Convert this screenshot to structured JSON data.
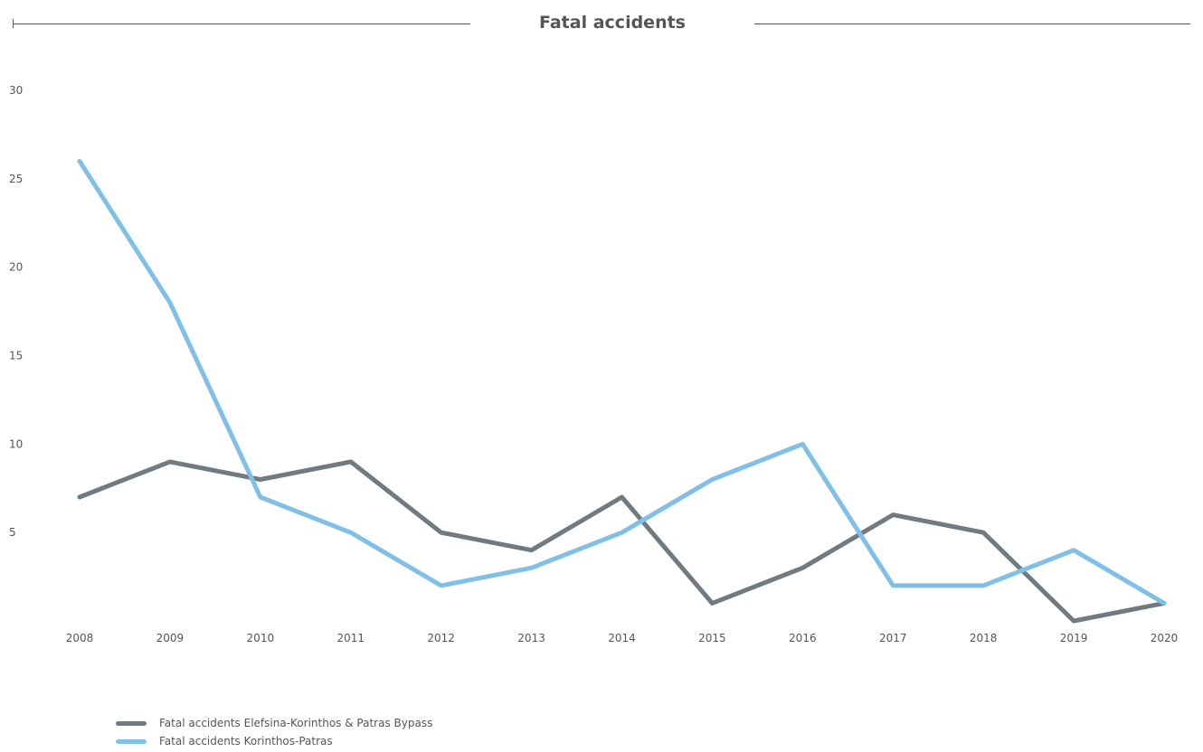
{
  "chart_data": {
    "type": "line",
    "title": "Fatal accidents",
    "xlabel": "",
    "ylabel": "",
    "x": [
      "2008",
      "2009",
      "2010",
      "2011",
      "2012",
      "2013",
      "2014",
      "2015",
      "2016",
      "2017",
      "2018",
      "2019",
      "2020"
    ],
    "yticks": [
      5,
      10,
      15,
      20,
      25,
      30
    ],
    "ylim": [
      0,
      30
    ],
    "grid": false,
    "legend_position": "bottom-left",
    "series": [
      {
        "name": "Fatal accidents Elefsina-Korinthos & Patras Bypass",
        "color": "#6f7a81",
        "values": [
          7,
          9,
          8,
          9,
          5,
          4,
          7,
          1,
          3,
          6,
          5,
          0,
          1
        ]
      },
      {
        "name": "Fatal accidents Korinthos-Patras",
        "color": "#80c0e8",
        "values": [
          26,
          18,
          7,
          5,
          2,
          3,
          5,
          8,
          10,
          2,
          2,
          4,
          1
        ]
      }
    ]
  }
}
